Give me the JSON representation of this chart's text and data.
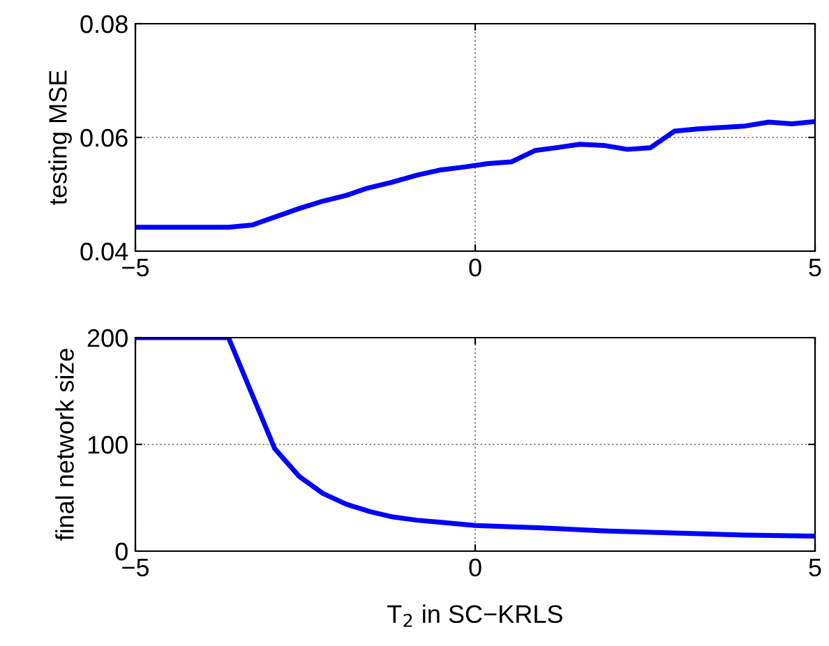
{
  "chart_data": [
    {
      "type": "line",
      "ylabel": "testing MSE",
      "xlim": [
        -5,
        5
      ],
      "xticks": [
        {
          "value": -5,
          "label": "−5"
        },
        0,
        5
      ],
      "ylim": [
        0.04,
        0.08
      ],
      "yticks": [
        0.04,
        0.06,
        0.08
      ],
      "grid": true,
      "line_style": "solid",
      "tick_labels": "xy",
      "series": [
        {
          "color": "#0000ff",
          "x": [
            -5,
            -3.63,
            -3.28,
            -2.59,
            -2.24,
            -1.9,
            -1.58,
            -1.23,
            -0.85,
            -0.5,
            -0.16,
            0.19,
            0.53,
            0.88,
            1.2,
            1.54,
            1.89,
            2.24,
            2.58,
            2.93,
            3.28,
            3.97,
            4.32,
            4.66,
            5
          ],
          "values": [
            0.0442,
            0.0442,
            0.0446,
            0.0475,
            0.0488,
            0.0498,
            0.0511,
            0.0521,
            0.0534,
            0.0543,
            0.0548,
            0.0554,
            0.0557,
            0.0577,
            0.0582,
            0.0588,
            0.0586,
            0.0579,
            0.0582,
            0.0611,
            0.0615,
            0.062,
            0.0627,
            0.0624,
            0.0628
          ]
        }
      ]
    },
    {
      "type": "line",
      "xlabel": "T$_{2}$ in SC−KRLS",
      "ylabel": "final network size",
      "xlim": [
        -5,
        5
      ],
      "xticks": [
        {
          "value": -5,
          "label": "−5"
        },
        0,
        5
      ],
      "ylim": [
        0,
        200
      ],
      "yticks": [
        0,
        100,
        200
      ],
      "grid": true,
      "line_style": "solid",
      "series": [
        {
          "color": "#0000ff",
          "x": [
            -5,
            -3.63,
            -2.95,
            -2.59,
            -2.24,
            -1.9,
            -1.55,
            -1.21,
            -0.86,
            -0.5,
            0,
            0.88,
            1.89,
            2.93,
            3.97,
            5
          ],
          "values": [
            200,
            200,
            96,
            70,
            54,
            44,
            37,
            32,
            29,
            27,
            24,
            22,
            19,
            17,
            15,
            14
          ]
        }
      ]
    }
  ]
}
